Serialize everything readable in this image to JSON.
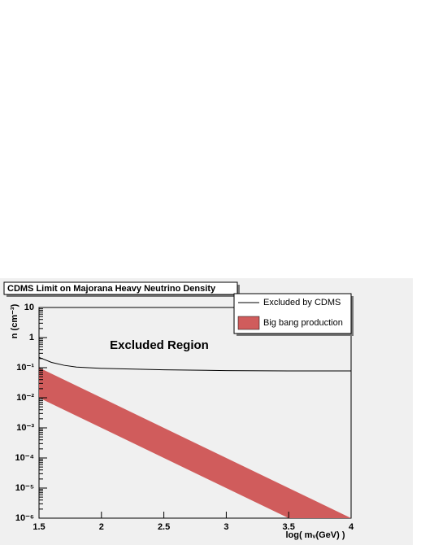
{
  "chart_data": {
    "type": "line",
    "title": "CDMS Limit on Majorana Heavy Neutrino Density",
    "annotation": "Excluded Region",
    "x_label": "log( mᵥ(GeV) )",
    "y_label": "n (cm⁻³)",
    "log_y": true,
    "xlim": [
      1.5,
      4
    ],
    "xticks": [
      1.5,
      2,
      2.5,
      3,
      3.5,
      4
    ],
    "ylim": [
      1e-06,
      10
    ],
    "yticks": [
      {
        "value": 1e-06,
        "label": "10⁻⁶"
      },
      {
        "value": 1e-05,
        "label": "10⁻⁵"
      },
      {
        "value": 0.0001,
        "label": "10⁻⁴"
      },
      {
        "value": 0.001,
        "label": "10⁻³"
      },
      {
        "value": 0.01,
        "label": "10⁻²"
      },
      {
        "value": 0.1,
        "label": "10⁻¹"
      },
      1,
      10
    ],
    "series": [
      {
        "name": "Excluded by CDMS",
        "color": "#000000",
        "x": [
          1.5,
          1.6,
          1.7,
          1.8,
          2.0,
          2.5,
          3.0,
          3.5,
          4.0
        ],
        "values": [
          0.22,
          0.15,
          0.12,
          0.105,
          0.095,
          0.085,
          0.08,
          0.078,
          0.078
        ]
      },
      {
        "name": "Big bang production",
        "color": "#d05c5c",
        "kind": "band",
        "x": [
          1.5,
          3.5,
          4.0
        ],
        "upper": [
          0.1,
          1e-05,
          1e-06
        ],
        "lower": [
          0.01,
          1e-06,
          1e-06
        ]
      }
    ]
  }
}
